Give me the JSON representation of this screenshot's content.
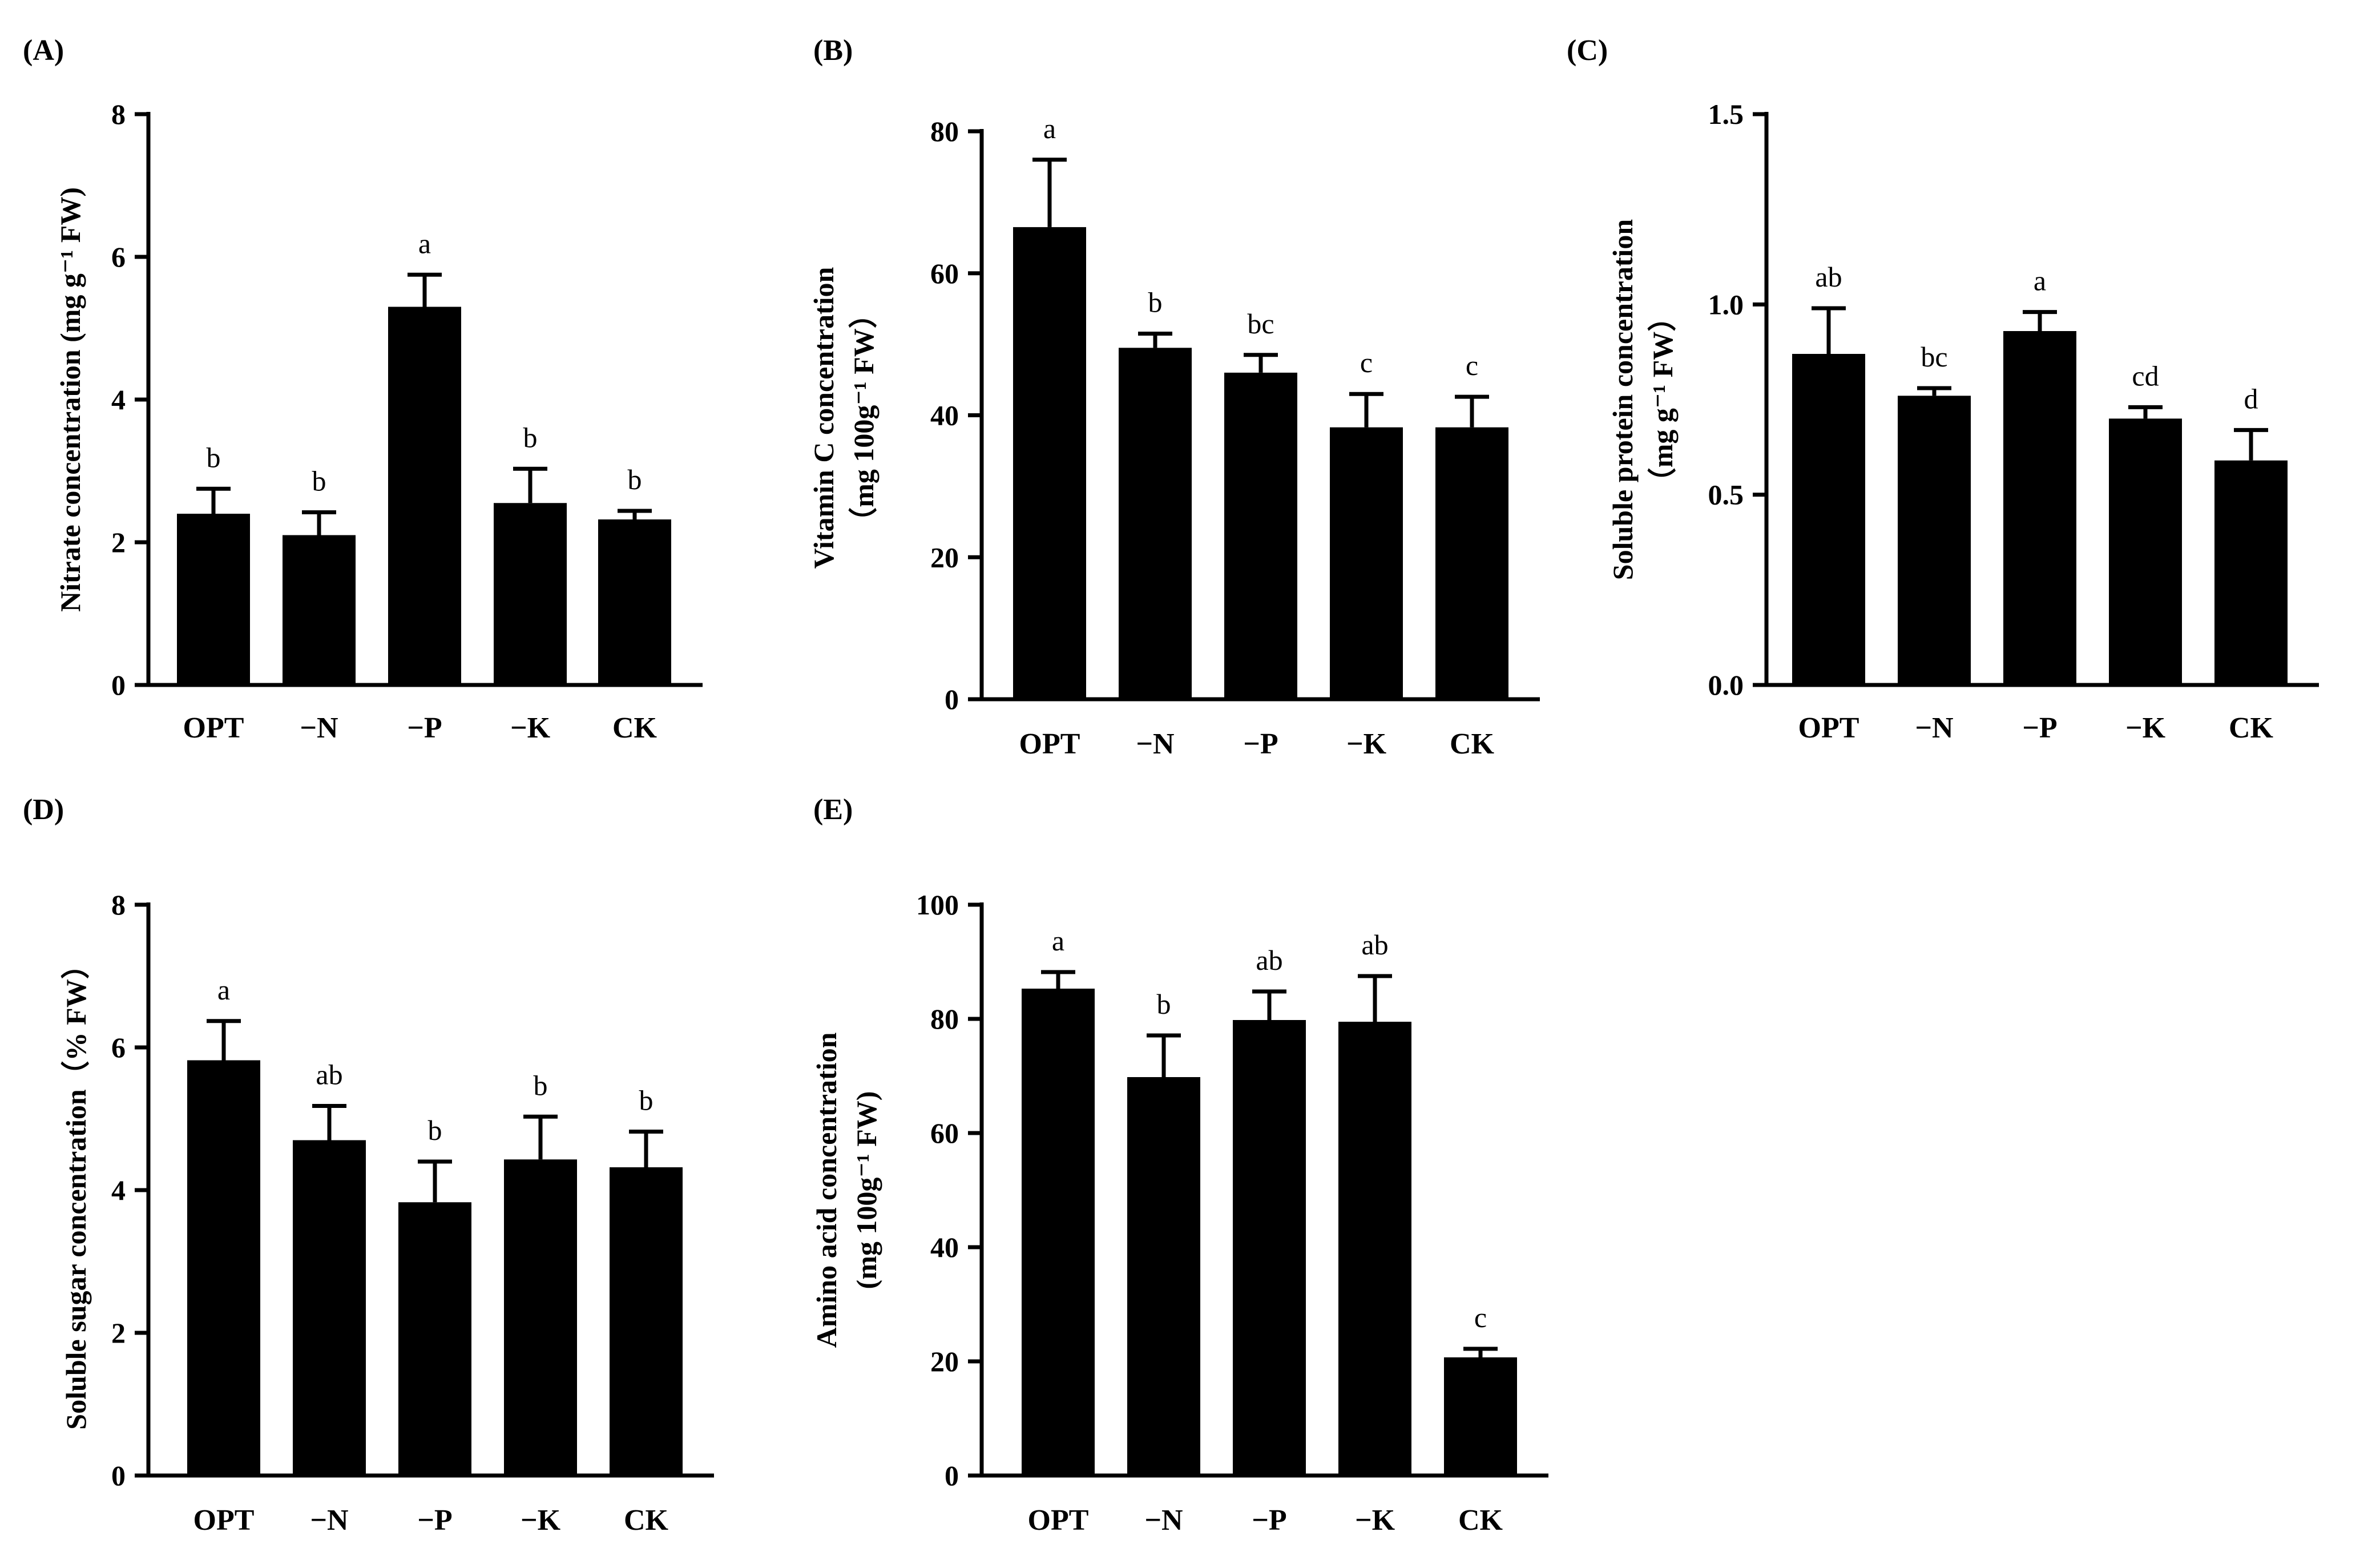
{
  "chart_data": [
    {
      "type": "bar",
      "panel": "(A)",
      "ylabel": "Nitrate concentration (mg g⁻¹ FW)",
      "ylabel_lines": [
        "Nitrate concentration (mg g⁻¹ FW)"
      ],
      "categories": [
        "OPT",
        "−N",
        "−P",
        "−K",
        "CK"
      ],
      "values": [
        2.4,
        2.1,
        5.3,
        2.55,
        2.32
      ],
      "errors": [
        0.35,
        0.32,
        0.45,
        0.48,
        0.12
      ],
      "significance": [
        "b",
        "b",
        "a",
        "b",
        "b"
      ],
      "ylim": [
        0,
        8
      ],
      "yticks": [
        0,
        2,
        4,
        6,
        8
      ],
      "ytick_labels": [
        "0",
        "2",
        "4",
        "6",
        "8"
      ]
    },
    {
      "type": "bar",
      "panel": "(B)",
      "ylabel": "Vitamin C concentration (mg 100g⁻¹ FW)",
      "ylabel_lines": [
        "Vitamin C concentration",
        "（mg 100g⁻¹ FW）"
      ],
      "categories": [
        "OPT",
        "−N",
        "−P",
        "−K",
        "CK"
      ],
      "values": [
        66.5,
        49.5,
        46.0,
        38.3,
        38.3
      ],
      "errors": [
        9.5,
        2.0,
        2.5,
        4.7,
        4.3
      ],
      "significance": [
        "a",
        "b",
        "bc",
        "c",
        "c"
      ],
      "ylim": [
        0,
        80
      ],
      "yticks": [
        0,
        20,
        40,
        60,
        80
      ],
      "ytick_labels": [
        "0",
        "20",
        "40",
        "60",
        "80"
      ]
    },
    {
      "type": "bar",
      "panel": "(C)",
      "ylabel": "Soluble protein concentration (mg g⁻¹ FW)",
      "ylabel_lines": [
        "Soluble protein concentration",
        "（mg g⁻¹ FW）"
      ],
      "categories": [
        "OPT",
        "−N",
        "−P",
        "−K",
        "CK"
      ],
      "values": [
        0.87,
        0.76,
        0.93,
        0.7,
        0.59
      ],
      "errors": [
        0.12,
        0.02,
        0.05,
        0.03,
        0.08
      ],
      "significance": [
        "ab",
        "bc",
        "a",
        "cd",
        "d"
      ],
      "ylim": [
        0,
        1.5
      ],
      "yticks": [
        0,
        0.5,
        1.0,
        1.5
      ],
      "ytick_labels": [
        "0.0",
        "0.5",
        "1.0",
        "1.5"
      ]
    },
    {
      "type": "bar",
      "panel": "(D)",
      "ylabel": "Soluble sugar concentration（% FW）",
      "ylabel_lines": [
        "Soluble sugar concentration（% FW）"
      ],
      "categories": [
        "OPT",
        "−N",
        "−P",
        "−K",
        "CK"
      ],
      "values": [
        5.82,
        4.7,
        3.83,
        4.43,
        4.32
      ],
      "errors": [
        0.55,
        0.48,
        0.57,
        0.6,
        0.5
      ],
      "significance": [
        "a",
        "ab",
        "b",
        "b",
        "b"
      ],
      "ylim": [
        0,
        8
      ],
      "yticks": [
        0,
        2,
        4,
        6,
        8
      ],
      "ytick_labels": [
        "0",
        "2",
        "4",
        "6",
        "8"
      ]
    },
    {
      "type": "bar",
      "panel": "(E)",
      "ylabel": "Amino acid concentration (mg 100g⁻¹ FW)",
      "ylabel_lines": [
        "Amino acid concentration",
        "(mg 100g⁻¹ FW)"
      ],
      "categories": [
        "OPT",
        "−N",
        "−P",
        "−K",
        "CK"
      ],
      "values": [
        85.3,
        69.8,
        79.8,
        79.5,
        20.7
      ],
      "errors": [
        2.9,
        7.3,
        5.0,
        8.0,
        1.5
      ],
      "significance": [
        "a",
        "b",
        "ab",
        "ab",
        "c"
      ],
      "ylim": [
        0,
        100
      ],
      "yticks": [
        0,
        20,
        40,
        60,
        80,
        100
      ],
      "ytick_labels": [
        "0",
        "20",
        "40",
        "60",
        "80",
        "100"
      ]
    }
  ]
}
